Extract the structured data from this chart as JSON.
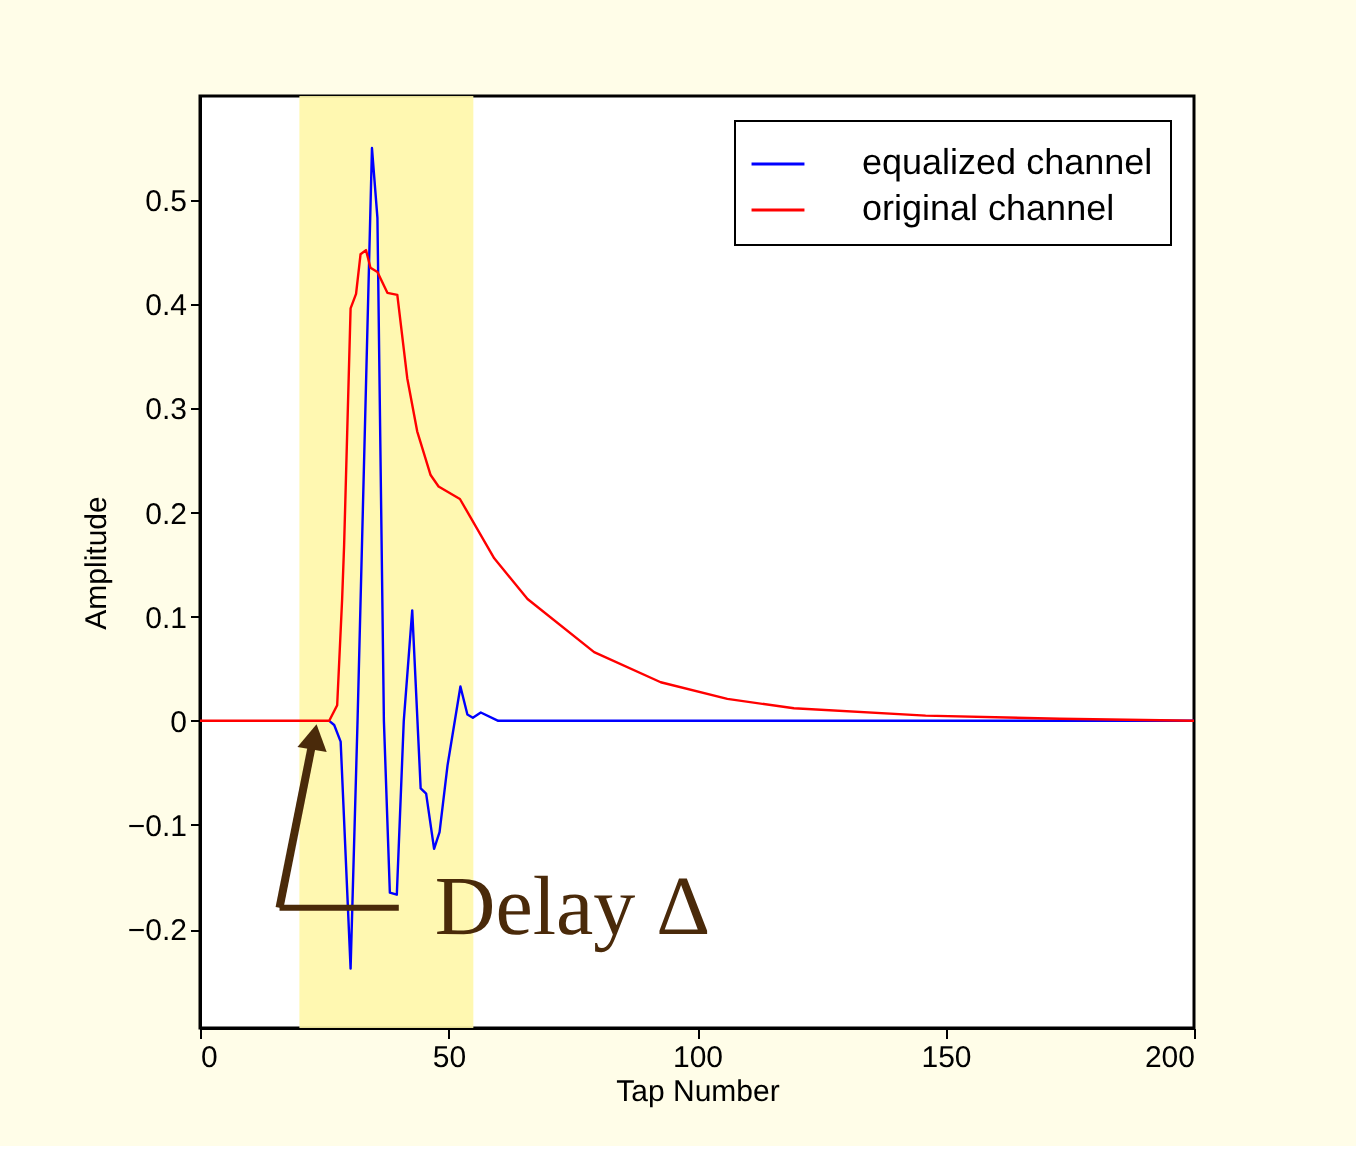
{
  "chart_data": {
    "type": "line",
    "xlabel": "Tap Number",
    "ylabel": "Amplitude",
    "xlim": [
      0,
      200
    ],
    "ylim": [
      -0.295,
      0.6
    ],
    "xticks": [
      0,
      50,
      100,
      150,
      200
    ],
    "yticks": [
      {
        "value": -0.2,
        "label": "−0.2"
      },
      {
        "value": -0.1,
        "label": "−0.1"
      },
      0,
      0.1,
      0.2,
      0.3,
      0.4,
      0.5
    ],
    "grid": false,
    "legend": "top right",
    "line_style": "solid",
    "marker": "none",
    "bands": [
      {
        "axis": "x",
        "from": 20,
        "to": 55,
        "label": null,
        "color": "#fff7a8"
      }
    ],
    "annotations": [
      {
        "text": "Delay Δ",
        "x": 23,
        "y": 0
      }
    ],
    "series": [
      {
        "name": "equalized channel",
        "color": "#0000ff",
        "x": [
          26,
          27,
          28.3,
          30.3,
          31.7,
          34.6,
          35.7,
          37,
          38.2,
          39.6,
          41,
          42.7,
          44.4,
          45.5,
          47.1,
          48.2,
          49.8,
          52.4,
          53.8,
          54.9,
          56.5,
          60,
          100,
          150,
          200
        ],
        "values": [
          0,
          -0.004,
          -0.02,
          -0.238,
          0,
          0.55,
          0.483,
          0,
          -0.165,
          -0.167,
          0,
          0.106,
          -0.065,
          -0.07,
          -0.123,
          -0.107,
          -0.043,
          0.033,
          0.006,
          0.003,
          0.008,
          0,
          0,
          0,
          0
        ]
      },
      {
        "name": "original channel",
        "color": "#ff0000",
        "x": [
          0,
          10,
          20,
          26,
          27.6,
          28.6,
          29,
          30.3,
          31.4,
          32.3,
          33.4,
          34.3,
          35.7,
          37.7,
          39.7,
          41.7,
          43.7,
          46.4,
          48,
          52.3,
          59.2,
          65.9,
          79.3,
          92.7,
          106.1,
          119.5,
          146,
          173,
          200
        ],
        "values": [
          0,
          0,
          0,
          0,
          0.015,
          0.117,
          0.169,
          0.396,
          0.41,
          0.448,
          0.452,
          0.435,
          0.431,
          0.411,
          0.409,
          0.329,
          0.278,
          0.236,
          0.225,
          0.213,
          0.156,
          0.117,
          0.066,
          0.037,
          0.021,
          0.012,
          0.005,
          0.002,
          0
        ]
      }
    ]
  }
}
